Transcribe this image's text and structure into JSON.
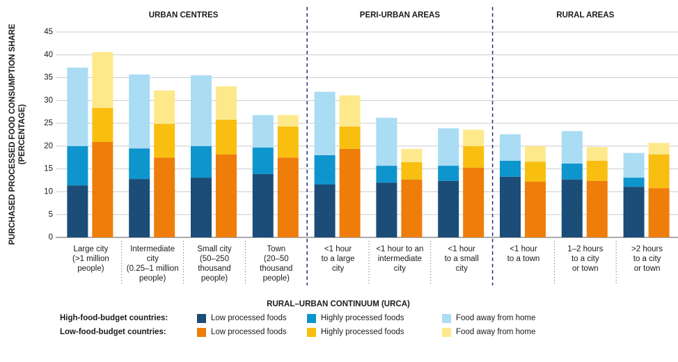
{
  "chart_data": {
    "type": "bar",
    "stacked": true,
    "ylabel": [
      "PURCHASED PROCESSED FOOD CONSUMPTION SHARE",
      "(PERCENTAGE)"
    ],
    "xlabel": "RURAL–URBAN CONTINUUM (URCA)",
    "sections": [
      {
        "label": "URBAN CENTRES",
        "count": 4
      },
      {
        "label": "PERI-URBAN AREAS",
        "count": 3
      },
      {
        "label": "RURAL AREAS",
        "count": 3
      }
    ],
    "categories": [
      "Large city\n(>1 million\npeople)",
      "Intermediate\ncity\n(0.25–1 million\npeople)",
      "Small city\n(50–250\nthousand\npeople)",
      "Town\n(20–50\nthousand\npeople)",
      "<1 hour\nto a large\ncity",
      "<1 hour to an\nintermediate\ncity",
      "<1 hour\nto a small\ncity",
      "<1 hour\nto a town",
      "1–2 hours\nto a city\nor town",
      ">2 hours\nto a city\nor town"
    ],
    "groups": [
      {
        "label": "High-food-budget countries:",
        "series": [
          {
            "name": "Low processed foods",
            "color": "#1b4d78",
            "values": [
              11.4,
              12.8,
              13.1,
              13.9,
              11.6,
              12.0,
              12.4,
              13.3,
              12.7,
              11.1
            ]
          },
          {
            "name": "Highly processed foods",
            "color": "#0e95cd",
            "values": [
              8.6,
              6.7,
              6.9,
              5.8,
              6.4,
              3.7,
              3.3,
              3.5,
              3.5,
              2.0
            ]
          },
          {
            "name": "Food away from home",
            "color": "#aadcf3",
            "values": [
              17.2,
              16.2,
              15.5,
              7.1,
              13.9,
              10.5,
              8.2,
              5.8,
              7.1,
              5.4
            ]
          }
        ]
      },
      {
        "label": "Low-food-budget countries:",
        "series": [
          {
            "name": "Low processed foods",
            "color": "#ee7d0a",
            "values": [
              20.9,
              17.5,
              18.2,
              17.5,
              19.4,
              12.7,
              15.3,
              12.2,
              12.4,
              10.8
            ]
          },
          {
            "name": "Highly processed foods",
            "color": "#f8bf10",
            "values": [
              7.5,
              7.4,
              7.6,
              6.8,
              4.9,
              3.8,
              4.7,
              4.4,
              4.4,
              7.4
            ]
          },
          {
            "name": "Food away from home",
            "color": "#fde98c",
            "values": [
              12.2,
              7.3,
              7.3,
              2.5,
              6.8,
              2.9,
              3.6,
              3.4,
              3.0,
              2.5
            ]
          }
        ]
      }
    ],
    "ylim": [
      0,
      45
    ],
    "yticks": [
      0,
      5,
      10,
      15,
      20,
      25,
      30,
      35,
      40,
      45
    ],
    "grid": true
  }
}
